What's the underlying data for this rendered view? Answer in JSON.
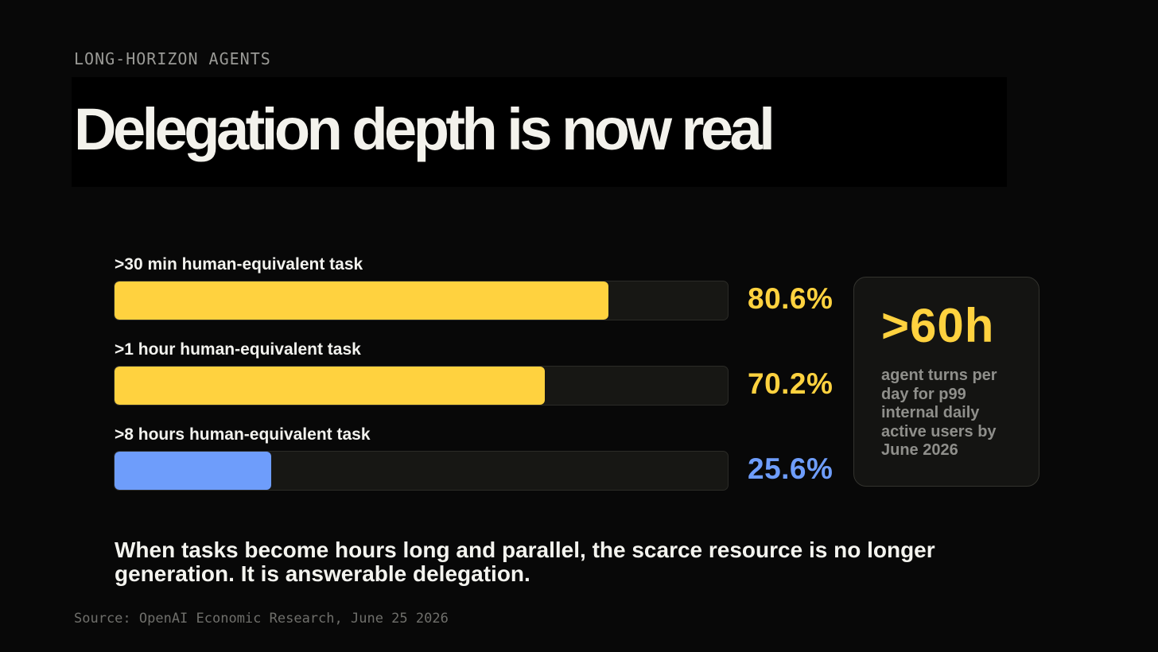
{
  "eyebrow": "LONG-HORIZON AGENTS",
  "title": "Delegation depth is now real",
  "chart_data": {
    "type": "bar",
    "orientation": "horizontal",
    "categories": [
      ">30 min human-equivalent task",
      ">1 hour human-equivalent task",
      ">8 hours human-equivalent task"
    ],
    "values": [
      80.6,
      70.2,
      25.6
    ],
    "value_labels": [
      "80.6%",
      "70.2%",
      "25.6%"
    ],
    "xlim": [
      0,
      100
    ],
    "colors": [
      "#ffd23f",
      "#ffd23f",
      "#6e9dfb"
    ],
    "grid": false,
    "legend": "none"
  },
  "stat_card": {
    "value": ">60h",
    "description": "agent turns per day for p99 internal daily active users by June 2026"
  },
  "takeaway": "When tasks become hours long and parallel, the scarce resource is no longer generation. It is answerable delegation.",
  "source": "Source: OpenAI Economic Research, June 25 2026",
  "colors": {
    "background": "#080808",
    "accent_yellow": "#ffd23f",
    "accent_blue": "#6e9dfb",
    "track": "#171714"
  }
}
